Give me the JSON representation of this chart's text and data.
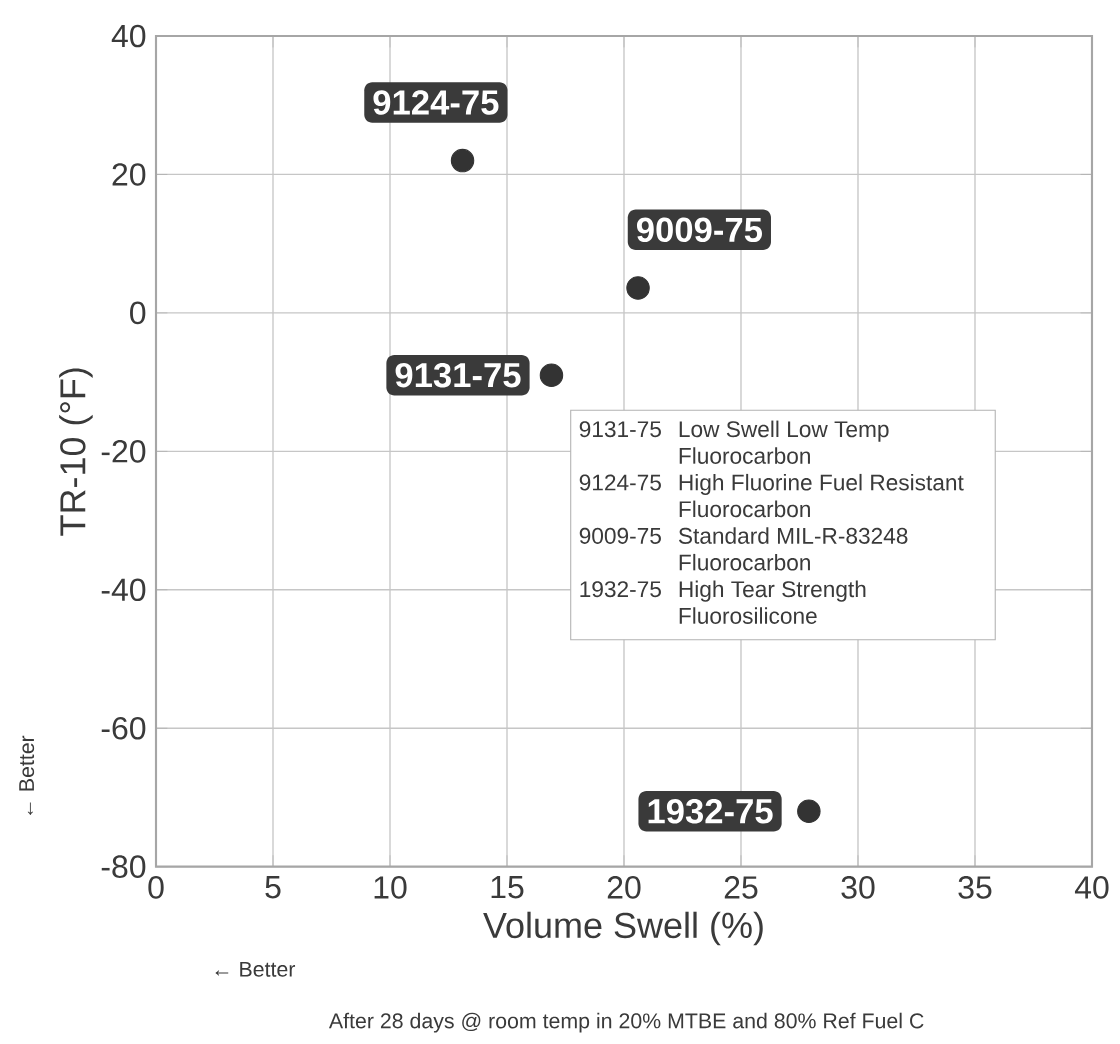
{
  "chart_data": {
    "type": "scatter",
    "xlabel": "Volume Swell (%)",
    "ylabel": "TR-10 (°F)",
    "xlim": [
      0,
      40
    ],
    "ylim": [
      -80,
      40
    ],
    "xticks": [
      0,
      5,
      10,
      15,
      20,
      25,
      30,
      35,
      40
    ],
    "yticks": [
      -80,
      -60,
      -40,
      -20,
      0,
      20,
      40
    ],
    "grid": true,
    "marker": "circle",
    "series": [
      {
        "name": "9131-75",
        "color": "#333333",
        "x": [
          16.9
        ],
        "values": [
          -9
        ]
      },
      {
        "name": "9124-75",
        "color": "#333333",
        "x": [
          13.1
        ],
        "values": [
          22
        ]
      },
      {
        "name": "9009-75",
        "color": "#333333",
        "x": [
          20.6
        ],
        "values": [
          3.6
        ]
      },
      {
        "name": "1932-75",
        "color": "#333333",
        "x": [
          27.9
        ],
        "values": [
          -72
        ]
      }
    ],
    "annotations": [
      "Low Swell  Low Temp Fluorocarbon",
      "High Fluorine Fuel Resistant Fluorocarbon",
      "Standard MIL-R-83248 Fluorocarbon",
      "High Tear Strength Fluorosilicone",
      "← Better",
      "← Better",
      "After 28 days @ room temp in 20% MTBE and 80% Ref Fuel C"
    ]
  }
}
